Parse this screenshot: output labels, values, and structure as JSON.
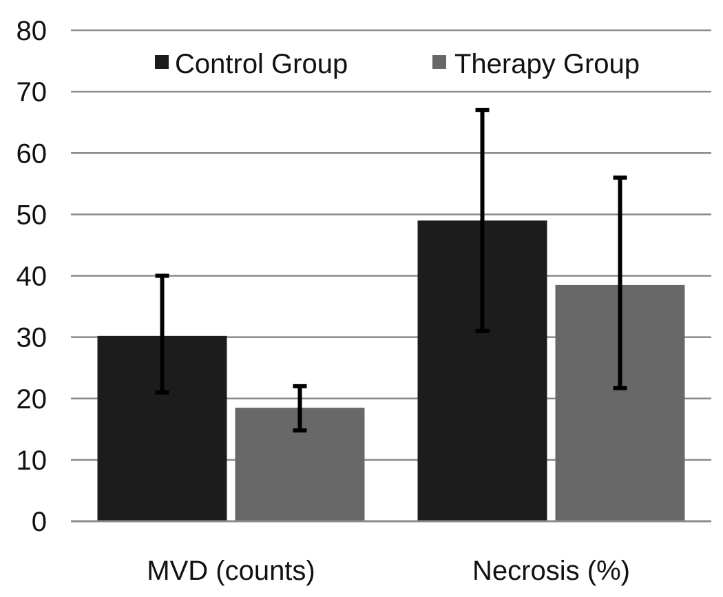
{
  "chart_data": {
    "type": "bar",
    "title": "",
    "xlabel": "",
    "ylabel": "",
    "ylim": [
      0,
      80
    ],
    "yticks": [
      0,
      10,
      20,
      30,
      40,
      50,
      60,
      70,
      80
    ],
    "grid": true,
    "legend_position": "top",
    "categories": [
      "MVD (counts)",
      "Necrosis (%)"
    ],
    "series": [
      {
        "name": "Control Group",
        "color": "#1c1c1c",
        "values": [
          30.2,
          49
        ],
        "error_low": [
          21,
          31
        ],
        "error_high": [
          40,
          67
        ]
      },
      {
        "name": "Therapy Group",
        "color": "#686868",
        "values": [
          18.5,
          38.5
        ],
        "error_low": [
          14.8,
          21.7
        ],
        "error_high": [
          22,
          56
        ]
      }
    ]
  }
}
